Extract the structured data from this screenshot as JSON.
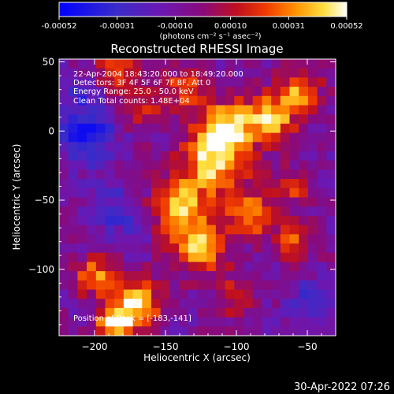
{
  "chart_data": {
    "type": "heatmap",
    "title": "Reconstructed RHESSI Image",
    "xlabel": "Heliocentric X (arcsec)",
    "ylabel": "Heliocentric Y (arcsec)",
    "xlim": [
      -225,
      -30
    ],
    "ylim": [
      -148,
      52
    ],
    "x_ticks": [
      -200,
      -150,
      -100,
      -50
    ],
    "y_ticks": [
      50,
      0,
      -50,
      -100
    ],
    "colorbar": {
      "ticks": [
        "-0.00052",
        "-0.00031",
        "-0.00010",
        "0.00010",
        "0.00031",
        "0.00052"
      ],
      "unit_label": "(photons cm⁻² s⁻¹ asec⁻²)",
      "range": [
        -0.00052,
        0.00052
      ]
    },
    "annotations": [
      "22-Apr-2004 18:43:20.000 to 18:49:20.000",
      "Detectors: 3F 4F 5F 6F 7F 8F, Att 0",
      "Energy Range: 25.0 - 50.0 keV",
      "Clean     Total counts: 1.48E+04"
    ],
    "peak_label": "Position of Peak = [-183,-141]",
    "peak_position": [
      -183,
      -141
    ],
    "grid_resolution": 30,
    "hotspots": [
      {
        "x": -115,
        "y": -20,
        "amp": 1.0,
        "sigma": 16
      },
      {
        "x": -140,
        "y": -55,
        "amp": 0.85,
        "sigma": 14
      },
      {
        "x": -105,
        "y": 5,
        "amp": 0.8,
        "sigma": 12
      },
      {
        "x": -75,
        "y": 10,
        "amp": 0.85,
        "sigma": 12
      },
      {
        "x": -55,
        "y": 30,
        "amp": 0.7,
        "sigma": 10
      },
      {
        "x": -125,
        "y": -85,
        "amp": 0.8,
        "sigma": 13
      },
      {
        "x": -170,
        "y": -125,
        "amp": 0.85,
        "sigma": 12
      },
      {
        "x": -185,
        "y": -140,
        "amp": 1.0,
        "sigma": 9
      },
      {
        "x": -200,
        "y": -105,
        "amp": 0.7,
        "sigma": 10
      },
      {
        "x": -165,
        "y": 15,
        "amp": 0.45,
        "sigma": 10
      },
      {
        "x": -185,
        "y": 45,
        "amp": 0.6,
        "sigma": 10
      },
      {
        "x": -90,
        "y": -60,
        "amp": 0.7,
        "sigma": 12
      },
      {
        "x": -60,
        "y": -80,
        "amp": 0.55,
        "sigma": 10
      },
      {
        "x": -135,
        "y": 30,
        "amp": 0.6,
        "sigma": 11
      },
      {
        "x": -100,
        "y": -120,
        "amp": 0.45,
        "sigma": 10
      },
      {
        "x": -60,
        "y": -40,
        "amp": 0.5,
        "sigma": 9
      }
    ],
    "cold_spots": [
      {
        "x": -205,
        "y": -5,
        "amp": -0.6,
        "sigma": 14
      },
      {
        "x": -185,
        "y": -60,
        "amp": -0.35,
        "sigma": 14
      },
      {
        "x": -45,
        "y": -125,
        "amp": -0.4,
        "sigma": 12
      },
      {
        "x": -210,
        "y": 25,
        "amp": -0.3,
        "sigma": 10
      }
    ]
  },
  "footer": {
    "timestamp": "30-Apr-2022 07:26"
  }
}
